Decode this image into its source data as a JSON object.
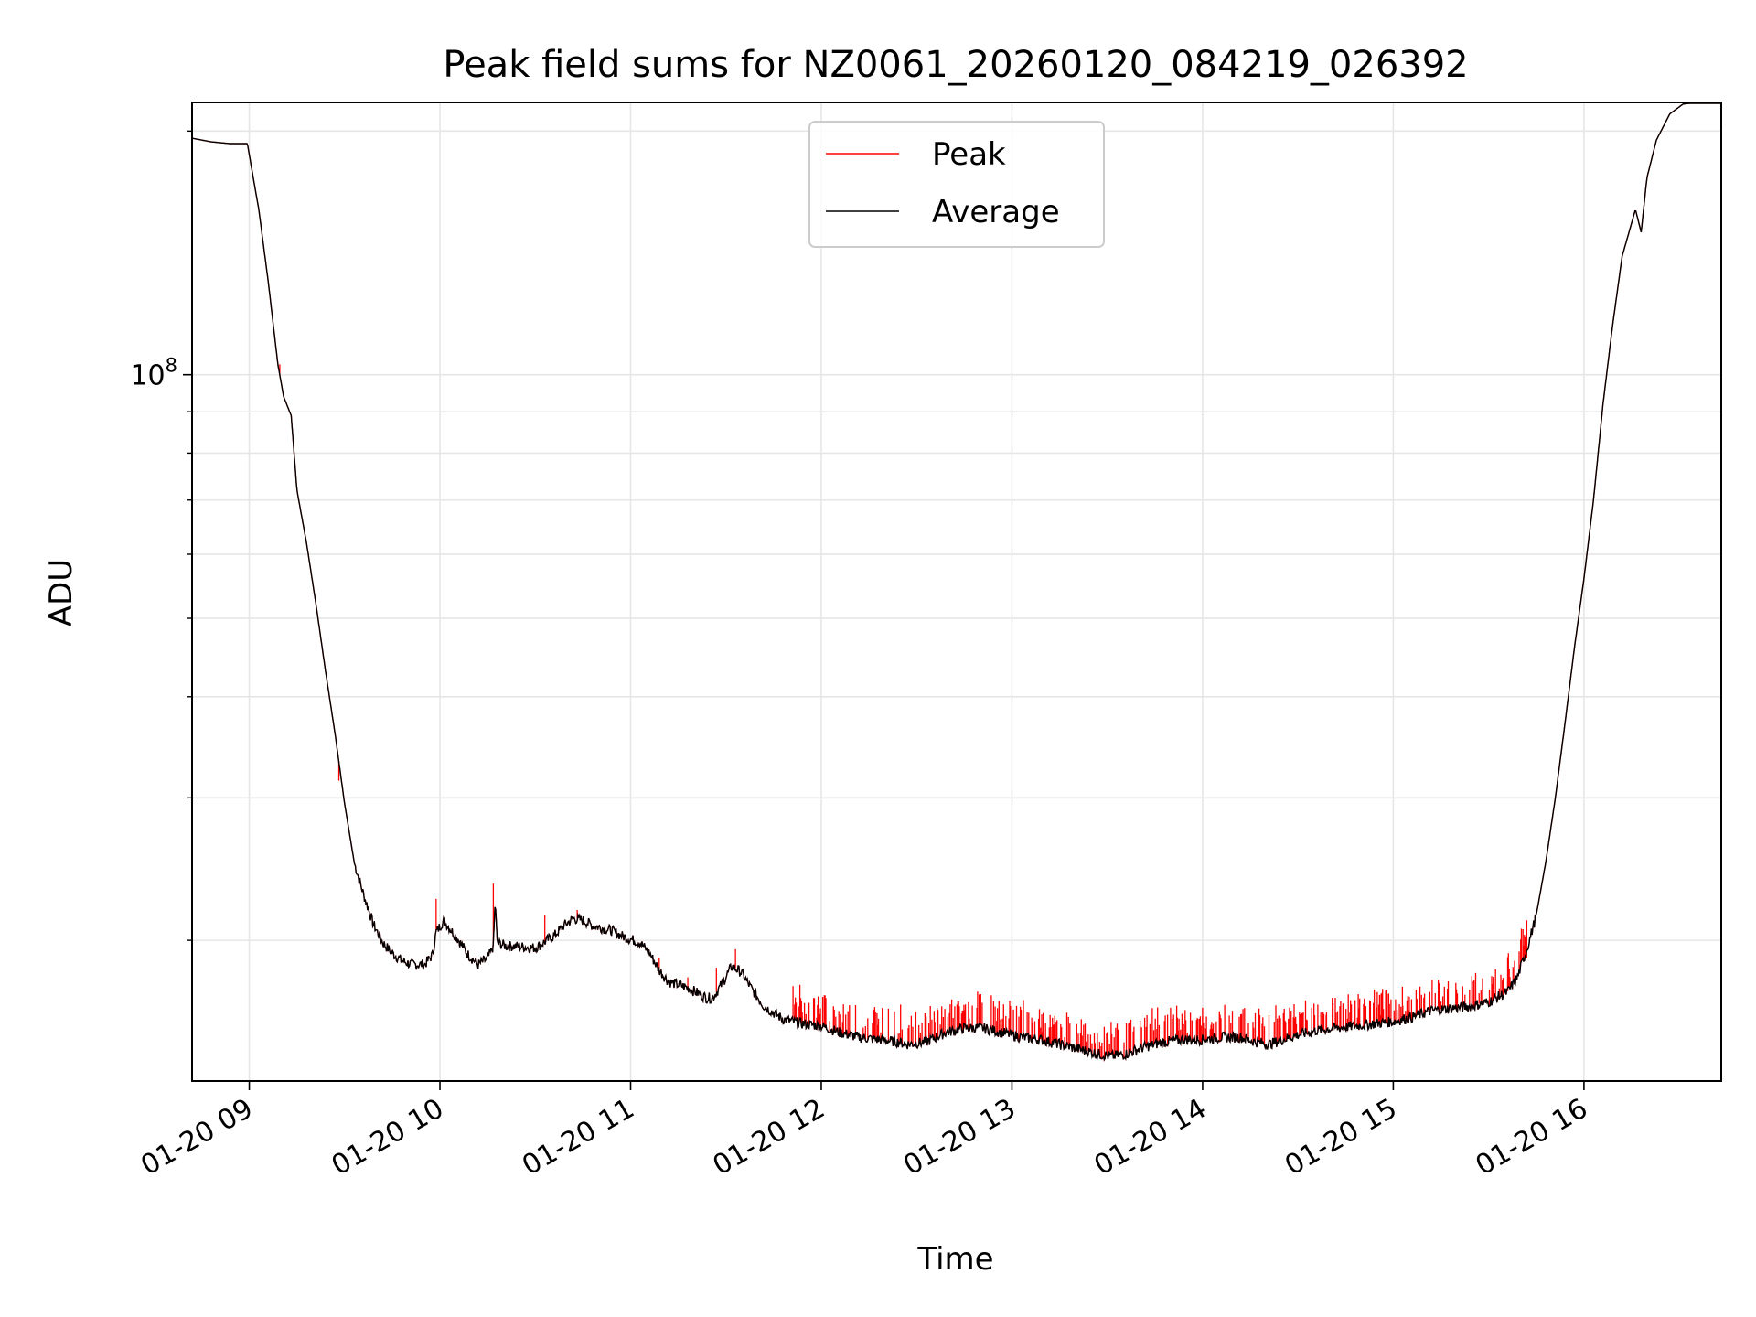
{
  "chart_data": {
    "type": "line",
    "title": "Peak field sums for NZ0061_20260120_084219_026392",
    "xlabel": "Time",
    "ylabel": "ADU",
    "yscale": "log",
    "ylim": [
      13400000,
      217000000
    ],
    "xlim_hours": [
      8.7,
      16.72
    ],
    "grid": true,
    "legend_position": "top-center",
    "x_ticks": [
      {
        "value": 9,
        "label": "01-20 09"
      },
      {
        "value": 10,
        "label": "01-20 10"
      },
      {
        "value": 11,
        "label": "01-20 11"
      },
      {
        "value": 12,
        "label": "01-20 12"
      },
      {
        "value": 13,
        "label": "01-20 13"
      },
      {
        "value": 14,
        "label": "01-20 14"
      },
      {
        "value": 15,
        "label": "01-20 15"
      },
      {
        "value": 16,
        "label": "01-20 16"
      }
    ],
    "y_major_ticks": [
      {
        "value": 100000000,
        "base": "10",
        "exp": "8"
      }
    ],
    "y_minor_ticks": [
      20000000,
      30000000,
      40000000,
      50000000,
      60000000,
      70000000,
      80000000,
      90000000,
      200000000
    ],
    "series": [
      {
        "name": "Peak",
        "color": "#ff0000",
        "note": "average plus intermittent upward spikes",
        "spikes": [
          [
            9.16,
            103000000
          ],
          [
            9.47,
            31500000
          ],
          [
            9.98,
            22500000
          ],
          [
            10.28,
            23500000
          ],
          [
            10.55,
            21500000
          ],
          [
            10.72,
            21800000
          ],
          [
            11.15,
            19000000
          ],
          [
            11.3,
            18000000
          ],
          [
            11.45,
            18500000
          ],
          [
            11.55,
            19500000
          ],
          [
            11.9,
            16300000
          ],
          [
            12.1,
            16200000
          ],
          [
            12.3,
            16000000
          ],
          [
            12.55,
            16100000
          ],
          [
            12.75,
            16400000
          ],
          [
            12.95,
            16000000
          ],
          [
            13.15,
            15600000
          ],
          [
            13.4,
            15300000
          ],
          [
            13.6,
            15800000
          ],
          [
            13.8,
            15900000
          ],
          [
            14.0,
            16100000
          ],
          [
            14.2,
            16200000
          ],
          [
            14.45,
            16000000
          ],
          [
            14.65,
            16300000
          ],
          [
            14.85,
            16500000
          ],
          [
            15.05,
            16600000
          ],
          [
            15.25,
            16800000
          ],
          [
            15.45,
            17200000
          ],
          [
            15.6,
            17800000
          ],
          [
            15.7,
            19000000
          ]
        ]
      },
      {
        "name": "Average",
        "color": "#000000",
        "points": [
          [
            8.7,
            196000000
          ],
          [
            8.8,
            194000000
          ],
          [
            8.9,
            193000000
          ],
          [
            8.99,
            193000000
          ],
          [
            9.05,
            160000000
          ],
          [
            9.1,
            130000000
          ],
          [
            9.15,
            103000000
          ],
          [
            9.18,
            94000000
          ],
          [
            9.22,
            89000000
          ],
          [
            9.25,
            72000000
          ],
          [
            9.3,
            62000000
          ],
          [
            9.35,
            52000000
          ],
          [
            9.4,
            43000000
          ],
          [
            9.45,
            36000000
          ],
          [
            9.5,
            29500000
          ],
          [
            9.55,
            25000000
          ],
          [
            9.6,
            22800000
          ],
          [
            9.65,
            21000000
          ],
          [
            9.7,
            19900000
          ],
          [
            9.75,
            19300000
          ],
          [
            9.8,
            18900000
          ],
          [
            9.85,
            18700000
          ],
          [
            9.92,
            18700000
          ],
          [
            9.96,
            19200000
          ],
          [
            9.98,
            20500000
          ],
          [
            10.02,
            21200000
          ],
          [
            10.06,
            20600000
          ],
          [
            10.1,
            20000000
          ],
          [
            10.15,
            19200000
          ],
          [
            10.2,
            18700000
          ],
          [
            10.25,
            19000000
          ],
          [
            10.28,
            19700000
          ],
          [
            10.29,
            22500000
          ],
          [
            10.3,
            19900000
          ],
          [
            10.35,
            19700000
          ],
          [
            10.4,
            19700000
          ],
          [
            10.5,
            19600000
          ],
          [
            10.6,
            20300000
          ],
          [
            10.65,
            20900000
          ],
          [
            10.7,
            21300000
          ],
          [
            10.75,
            21200000
          ],
          [
            10.8,
            20900000
          ],
          [
            10.9,
            20600000
          ],
          [
            10.95,
            20300000
          ],
          [
            11.0,
            20100000
          ],
          [
            11.05,
            19900000
          ],
          [
            11.1,
            19300000
          ],
          [
            11.15,
            18400000
          ],
          [
            11.2,
            17800000
          ],
          [
            11.3,
            17500000
          ],
          [
            11.4,
            17000000
          ],
          [
            11.43,
            17000000
          ],
          [
            11.48,
            17700000
          ],
          [
            11.53,
            18600000
          ],
          [
            11.58,
            18300000
          ],
          [
            11.63,
            17500000
          ],
          [
            11.7,
            16600000
          ],
          [
            11.8,
            16000000
          ],
          [
            11.9,
            15800000
          ],
          [
            12.0,
            15700000
          ],
          [
            12.1,
            15400000
          ],
          [
            12.2,
            15200000
          ],
          [
            12.3,
            15100000
          ],
          [
            12.4,
            15000000
          ],
          [
            12.45,
            14900000
          ],
          [
            12.55,
            15000000
          ],
          [
            12.65,
            15400000
          ],
          [
            12.75,
            15600000
          ],
          [
            12.85,
            15600000
          ],
          [
            12.95,
            15400000
          ],
          [
            13.05,
            15200000
          ],
          [
            13.15,
            15100000
          ],
          [
            13.25,
            14900000
          ],
          [
            13.35,
            14700000
          ],
          [
            13.45,
            14500000
          ],
          [
            13.52,
            14400000
          ],
          [
            13.6,
            14500000
          ],
          [
            13.7,
            14800000
          ],
          [
            13.8,
            15000000
          ],
          [
            13.9,
            15100000
          ],
          [
            14.0,
            15100000
          ],
          [
            14.1,
            15200000
          ],
          [
            14.2,
            15200000
          ],
          [
            14.28,
            15000000
          ],
          [
            14.35,
            14900000
          ],
          [
            14.42,
            15100000
          ],
          [
            14.5,
            15300000
          ],
          [
            14.6,
            15500000
          ],
          [
            14.7,
            15600000
          ],
          [
            14.8,
            15700000
          ],
          [
            14.9,
            15800000
          ],
          [
            15.0,
            15900000
          ],
          [
            15.1,
            16100000
          ],
          [
            15.2,
            16400000
          ],
          [
            15.3,
            16500000
          ],
          [
            15.4,
            16600000
          ],
          [
            15.5,
            16800000
          ],
          [
            15.6,
            17300000
          ],
          [
            15.65,
            18000000
          ],
          [
            15.7,
            19500000
          ],
          [
            15.75,
            21500000
          ],
          [
            15.8,
            25000000
          ],
          [
            15.85,
            30000000
          ],
          [
            15.9,
            37000000
          ],
          [
            15.95,
            46000000
          ],
          [
            16.0,
            56000000
          ],
          [
            16.05,
            70000000
          ],
          [
            16.1,
            92000000
          ],
          [
            16.15,
            115000000
          ],
          [
            16.2,
            140000000
          ],
          [
            16.27,
            160000000
          ],
          [
            16.3,
            150000000
          ],
          [
            16.33,
            175000000
          ],
          [
            16.38,
            195000000
          ],
          [
            16.45,
            210000000
          ],
          [
            16.52,
            216000000
          ],
          [
            16.6,
            217000000
          ],
          [
            16.72,
            217000000
          ]
        ]
      }
    ]
  }
}
